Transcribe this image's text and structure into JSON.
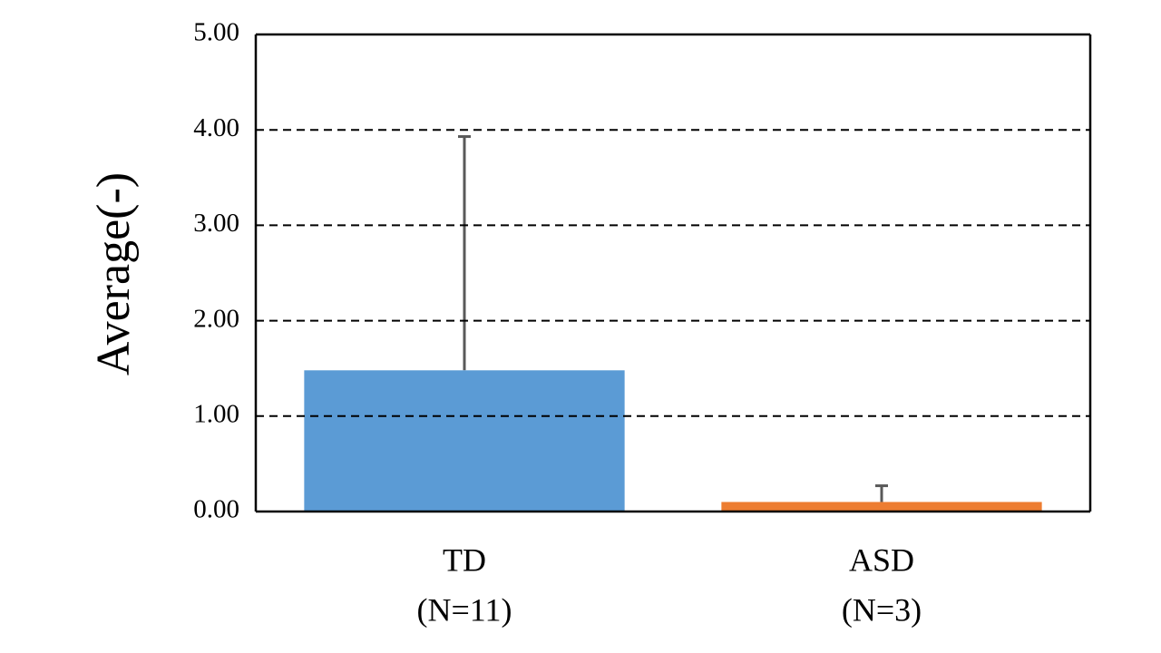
{
  "chart_data": {
    "type": "bar",
    "y_label": "Average(-)",
    "categories": [
      [
        "TD",
        "(N=11)"
      ],
      [
        "ASD",
        "(N=3)"
      ]
    ],
    "values": [
      1.48,
      0.1
    ],
    "errors": [
      2.45,
      0.17
    ],
    "colors": [
      "#5b9bd5",
      "#ed7d31"
    ],
    "error_color": "#595959",
    "ylim": [
      0,
      5
    ],
    "yticks": [
      {
        "value": 0,
        "label": "0.00"
      },
      {
        "value": 1,
        "label": "1.00"
      },
      {
        "value": 2,
        "label": "2.00"
      },
      {
        "value": 3,
        "label": "3.00"
      },
      {
        "value": 4,
        "label": "4.00"
      },
      {
        "value": 5,
        "label": "5.00"
      }
    ],
    "grid": true
  }
}
